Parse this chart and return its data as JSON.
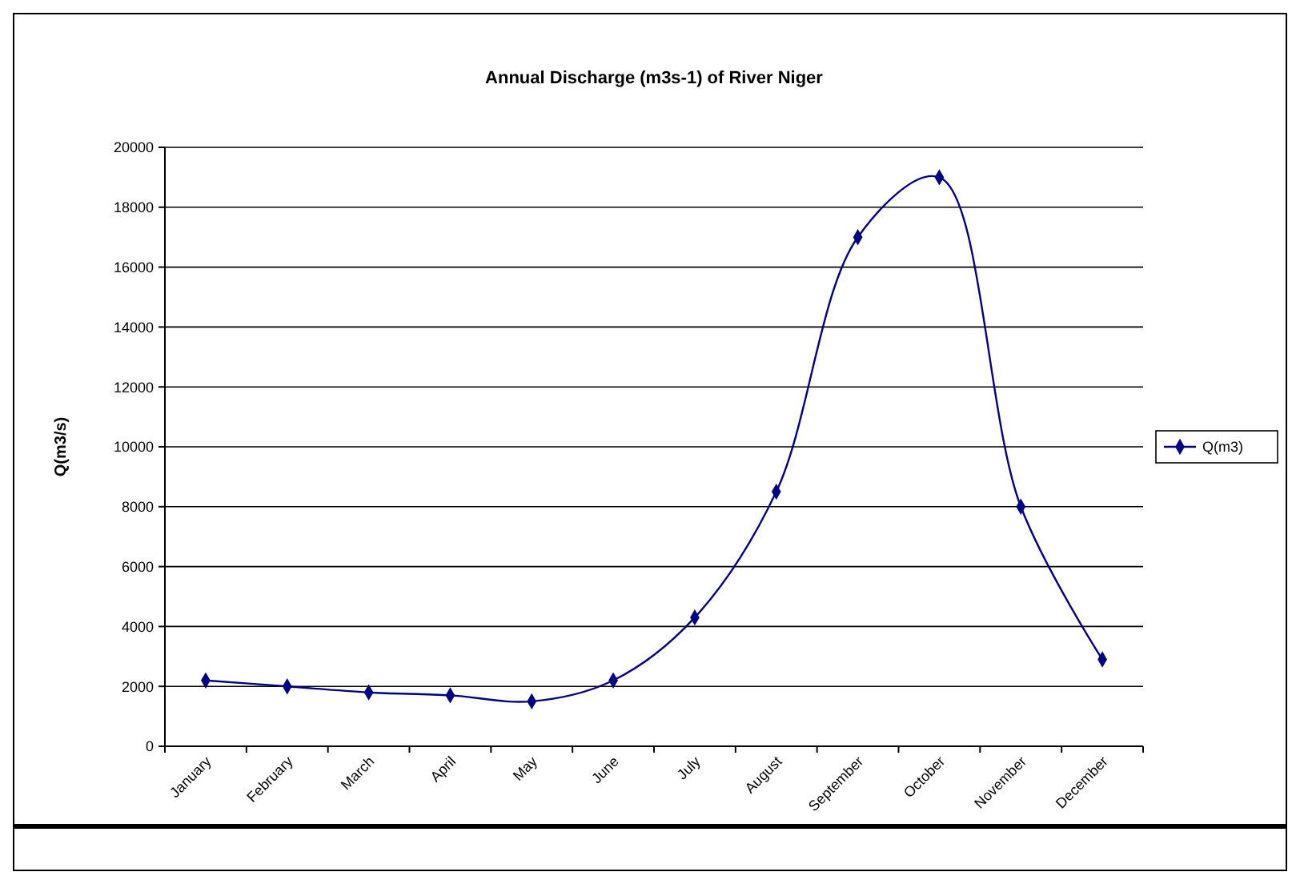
{
  "chart_data": {
    "type": "line",
    "title": "Annual Discharge (m3s-1) of River Niger",
    "ylabel": "Q(m3/s)",
    "categories": [
      "January",
      "February",
      "March",
      "April",
      "May",
      "June",
      "July",
      "August",
      "September",
      "October",
      "November",
      "December"
    ],
    "series": [
      {
        "name": "Q(m3)",
        "color": "#000080",
        "values": [
          2200,
          2000,
          1800,
          1700,
          1500,
          2200,
          4300,
          8500,
          17000,
          19000,
          8000,
          2900
        ]
      }
    ],
    "ylim": [
      0,
      20000
    ],
    "yticks": [
      0,
      2000,
      4000,
      6000,
      8000,
      10000,
      12000,
      14000,
      16000,
      18000,
      20000
    ],
    "grid": "y",
    "legend": "right",
    "marker": "diamond",
    "line_style": "solid"
  }
}
